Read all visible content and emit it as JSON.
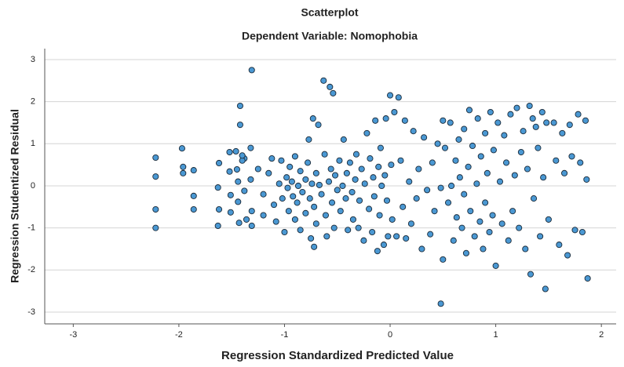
{
  "chart_data": {
    "type": "scatter",
    "title": "Scatterplot",
    "subtitle": "Dependent Variable: Nomophobia",
    "x_label": "Regression Standardized Predicted Value",
    "y_label": "Regression Studentized Residual",
    "color": "#4a98d3",
    "edge_color": "#1b2a38",
    "grid": true,
    "xlim": [
      -3.27,
      2.14
    ],
    "ylim": [
      -3.28,
      3.26
    ],
    "xticks": [
      -3,
      -2,
      -1,
      0,
      1,
      2
    ],
    "yticks": [
      -3,
      -2,
      -1,
      0,
      1,
      2,
      3
    ],
    "x": [
      -2.22,
      -2.22,
      -2.22,
      -2.22,
      -1.97,
      -1.96,
      -1.96,
      -1.86,
      -1.86,
      -1.86,
      -1.63,
      -1.62,
      -1.63,
      -1.62,
      -1.52,
      -1.52,
      -1.51,
      -1.51,
      -1.46,
      -1.45,
      -1.44,
      -1.44,
      -1.43,
      -1.42,
      -1.42,
      -1.31,
      -1.32,
      -1.32,
      -1.31,
      -1.31,
      -1.38,
      -1.38,
      -1.4,
      -1.4,
      -1.36,
      -1.25,
      -1.2,
      -1.2,
      -1.15,
      -1.12,
      -1.1,
      -1.08,
      -1.05,
      -1.03,
      -1.02,
      -1.0,
      -0.98,
      -0.97,
      -0.96,
      -0.95,
      -0.93,
      -0.92,
      -0.9,
      -0.9,
      -0.88,
      -0.87,
      -0.85,
      -0.85,
      -0.83,
      -0.8,
      -0.8,
      -0.78,
      -0.77,
      -0.76,
      -0.75,
      -0.74,
      -0.73,
      -0.72,
      -0.72,
      -0.7,
      -0.7,
      -0.68,
      -0.67,
      -0.65,
      -0.63,
      -0.62,
      -0.61,
      -0.6,
      -0.58,
      -0.57,
      -0.56,
      -0.55,
      -0.54,
      -0.53,
      -0.52,
      -0.5,
      -0.48,
      -0.47,
      -0.45,
      -0.44,
      -0.42,
      -0.41,
      -0.4,
      -0.38,
      -0.36,
      -0.35,
      -0.33,
      -0.32,
      -0.3,
      -0.29,
      -0.27,
      -0.25,
      -0.24,
      -0.22,
      -0.2,
      -0.19,
      -0.17,
      -0.16,
      -0.15,
      -0.14,
      -0.12,
      -0.11,
      -0.1,
      -0.09,
      -0.08,
      -0.06,
      -0.05,
      -0.04,
      -0.03,
      -0.02,
      0.0,
      0.01,
      0.02,
      0.04,
      0.06,
      0.08,
      0.1,
      0.12,
      0.14,
      0.15,
      0.18,
      0.2,
      0.22,
      0.25,
      0.27,
      0.3,
      0.32,
      0.35,
      0.38,
      0.4,
      0.42,
      0.45,
      0.48,
      0.5,
      0.5,
      0.48,
      0.52,
      0.55,
      0.57,
      0.58,
      0.6,
      0.62,
      0.63,
      0.65,
      0.66,
      0.68,
      0.7,
      0.7,
      0.72,
      0.74,
      0.75,
      0.76,
      0.78,
      0.8,
      0.82,
      0.83,
      0.85,
      0.86,
      0.88,
      0.9,
      0.9,
      0.92,
      0.94,
      0.95,
      0.97,
      0.98,
      1.0,
      1.02,
      1.04,
      1.06,
      1.08,
      1.1,
      1.12,
      1.14,
      1.16,
      1.18,
      1.2,
      1.22,
      1.24,
      1.26,
      1.28,
      1.3,
      1.32,
      1.33,
      1.35,
      1.36,
      1.38,
      1.4,
      1.42,
      1.44,
      1.45,
      1.47,
      1.48,
      1.5,
      1.55,
      1.57,
      1.6,
      1.63,
      1.65,
      1.68,
      1.7,
      1.72,
      1.75,
      1.78,
      1.8,
      1.82,
      1.85,
      1.86,
      1.87
    ],
    "values": [
      0.67,
      0.22,
      -0.56,
      -1.0,
      0.89,
      0.45,
      0.3,
      0.37,
      -0.24,
      -0.56,
      -0.04,
      -0.56,
      -0.95,
      0.54,
      0.8,
      0.34,
      -0.22,
      -0.63,
      0.82,
      0.39,
      0.1,
      -0.38,
      -0.88,
      1.9,
      1.45,
      2.75,
      0.9,
      0.15,
      -0.6,
      -0.95,
      0.65,
      -0.12,
      0.6,
      0.72,
      -0.8,
      0.4,
      -0.2,
      -0.7,
      0.3,
      0.65,
      -0.45,
      -0.85,
      0.05,
      0.6,
      -0.3,
      -1.1,
      0.2,
      -0.05,
      -0.6,
      0.45,
      0.1,
      -0.25,
      -0.8,
      0.7,
      -0.4,
      0.0,
      -1.05,
      0.35,
      -0.15,
      0.15,
      -0.65,
      0.55,
      1.1,
      -0.3,
      -1.25,
      0.05,
      1.6,
      -0.5,
      -1.45,
      0.3,
      -0.9,
      1.45,
      0.02,
      -0.2,
      2.5,
      0.75,
      -0.7,
      -1.2,
      0.1,
      2.35,
      0.4,
      -0.4,
      2.2,
      -1.0,
      0.25,
      -0.1,
      0.6,
      -0.6,
      0.0,
      1.1,
      -0.3,
      0.3,
      -1.05,
      0.55,
      -0.15,
      -0.8,
      0.15,
      0.75,
      -1.0,
      -0.35,
      0.4,
      -1.3,
      0.05,
      1.25,
      -0.55,
      0.65,
      -1.1,
      0.2,
      -0.25,
      1.55,
      -1.55,
      0.45,
      -0.7,
      0.9,
      0.0,
      -1.4,
      0.25,
      1.6,
      -0.35,
      -1.2,
      2.15,
      0.5,
      -0.8,
      1.75,
      -1.2,
      2.1,
      0.6,
      -0.5,
      1.55,
      -1.25,
      0.1,
      -0.9,
      1.3,
      -0.3,
      0.4,
      -1.5,
      1.15,
      -0.1,
      -1.15,
      0.55,
      -0.6,
      1.0,
      -0.05,
      1.55,
      -1.75,
      -2.8,
      0.9,
      -0.4,
      1.5,
      0.0,
      -1.3,
      0.6,
      -0.75,
      1.1,
      0.2,
      -1.0,
      1.35,
      -0.2,
      -1.6,
      0.45,
      1.8,
      -0.6,
      0.95,
      -1.2,
      0.05,
      1.6,
      -0.85,
      0.7,
      -1.5,
      1.25,
      -0.4,
      0.3,
      -1.1,
      1.75,
      -0.7,
      0.85,
      -1.9,
      1.5,
      0.1,
      -0.9,
      1.2,
      0.55,
      -1.3,
      1.7,
      -0.6,
      0.25,
      1.85,
      -1.0,
      0.8,
      1.3,
      -1.5,
      0.4,
      1.9,
      -2.1,
      1.6,
      -0.3,
      1.4,
      0.9,
      -1.2,
      1.75,
      0.2,
      -2.45,
      1.5,
      -0.8,
      1.5,
      0.6,
      -1.4,
      1.25,
      0.3,
      -1.65,
      1.45,
      0.7,
      -1.05,
      1.7,
      0.55,
      -1.1,
      1.55,
      0.15,
      -2.2
    ]
  }
}
